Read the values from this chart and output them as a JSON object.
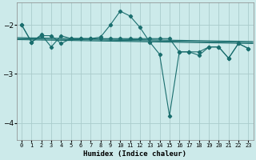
{
  "xlabel": "Humidex (Indice chaleur)",
  "background_color": "#cceaea",
  "grid_color": "#aacccc",
  "line_color": "#1a6e6e",
  "xlim": [
    -0.5,
    23.5
  ],
  "ylim": [
    -4.35,
    -1.55
  ],
  "yticks": [
    -4,
    -3,
    -2
  ],
  "xtick_labels": [
    "0",
    "1",
    "2",
    "3",
    "4",
    "5",
    "6",
    "7",
    "8",
    "9",
    "10",
    "11",
    "12",
    "13",
    "14",
    "15",
    "16",
    "17",
    "18",
    "19",
    "20",
    "21",
    "22",
    "23"
  ],
  "series_main": [
    [
      0,
      -2.0
    ],
    [
      1,
      -2.35
    ],
    [
      2,
      -2.2
    ],
    [
      3,
      -2.45
    ],
    [
      4,
      -2.22
    ],
    [
      5,
      -2.28
    ],
    [
      6,
      -2.28
    ],
    [
      7,
      -2.28
    ],
    [
      8,
      -2.25
    ],
    [
      9,
      -2.0
    ],
    [
      10,
      -1.72
    ],
    [
      11,
      -1.82
    ],
    [
      12,
      -2.05
    ],
    [
      13,
      -2.35
    ],
    [
      14,
      -2.6
    ],
    [
      15,
      -3.85
    ],
    [
      16,
      -2.55
    ],
    [
      17,
      -2.55
    ],
    [
      18,
      -2.62
    ],
    [
      19,
      -2.45
    ],
    [
      20,
      -2.45
    ],
    [
      21,
      -2.68
    ],
    [
      22,
      -2.38
    ],
    [
      23,
      -2.48
    ]
  ],
  "series_upper": [
    [
      0,
      -2.0
    ],
    [
      1,
      -2.35
    ],
    [
      2,
      -2.22
    ],
    [
      3,
      -2.22
    ],
    [
      4,
      -2.38
    ],
    [
      5,
      -2.28
    ],
    [
      6,
      -2.28
    ],
    [
      7,
      -2.28
    ],
    [
      8,
      -2.28
    ],
    [
      9,
      -2.28
    ],
    [
      10,
      -2.28
    ],
    [
      11,
      -2.28
    ],
    [
      12,
      -2.28
    ],
    [
      13,
      -2.28
    ],
    [
      14,
      -2.28
    ],
    [
      15,
      -2.28
    ],
    [
      16,
      -2.55
    ],
    [
      17,
      -2.55
    ],
    [
      18,
      -2.55
    ],
    [
      19,
      -2.45
    ],
    [
      20,
      -2.45
    ],
    [
      21,
      -2.68
    ],
    [
      22,
      -2.38
    ],
    [
      23,
      -2.48
    ]
  ],
  "trend_lines": [
    [
      [
        -0.5,
        -2.26
      ],
      [
        23.5,
        -2.34
      ]
    ],
    [
      [
        -0.5,
        -2.28
      ],
      [
        23.5,
        -2.36
      ]
    ],
    [
      [
        -0.5,
        -2.3
      ],
      [
        23.5,
        -2.38
      ]
    ]
  ]
}
